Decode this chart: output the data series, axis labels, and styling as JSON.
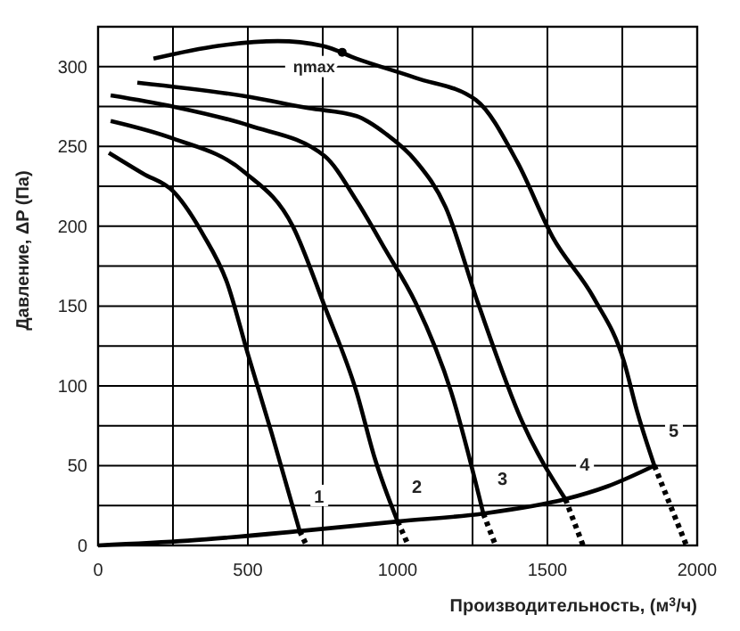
{
  "chart_data": {
    "type": "line",
    "xlabel": "Производительность, (м$^{3}$/ч)",
    "ylabel": "Давление, ΔP (Па)",
    "xlim": [
      0,
      2000
    ],
    "ylim": [
      0,
      325
    ],
    "xticks": [
      0,
      {
        "value": 250,
        "label": null
      },
      500,
      {
        "value": 750,
        "label": null
      },
      1000,
      {
        "value": 1250,
        "label": null
      },
      1500,
      {
        "value": 1750,
        "label": null
      },
      2000
    ],
    "yticks": [
      0,
      {
        "value": 25,
        "label": null
      },
      50,
      {
        "value": 75,
        "label": null
      },
      100,
      {
        "value": 125,
        "label": null
      },
      150,
      {
        "value": 175,
        "label": null
      },
      200,
      {
        "value": 225,
        "label": null
      },
      250,
      {
        "value": 275,
        "label": null
      },
      300
    ],
    "grid": true,
    "series": [
      {
        "color": "#000000",
        "x": [
          36,
          150,
          250,
          350,
          430,
          500,
          580,
          673
        ],
        "values": [
          246,
          233,
          222,
          195,
          165,
          120,
          70,
          9
        ]
      },
      {
        "color": "#000000",
        "x": [
          673,
          696
        ],
        "values": [
          9,
          0
        ],
        "line_style": "dotted"
      },
      {
        "color": "#000000",
        "x": [
          42,
          250,
          488,
          650,
          756,
          863,
          923,
          1000
        ],
        "values": [
          266,
          255,
          234,
          200,
          150,
          96,
          55,
          15
        ]
      },
      {
        "color": "#000000",
        "x": [
          1000,
          1036
        ],
        "values": [
          15,
          0
        ],
        "line_style": "dotted"
      },
      {
        "color": "#000000",
        "x": [
          42,
          250,
          506,
          756,
          863,
          960,
          1060,
          1179,
          1286
        ],
        "values": [
          282,
          275,
          263,
          244,
          216,
          185,
          152,
          96,
          20
        ]
      },
      {
        "color": "#000000",
        "x": [
          1286,
          1327
        ],
        "values": [
          20,
          0
        ],
        "line_style": "dotted"
      },
      {
        "color": "#000000",
        "x": [
          131,
          506,
          702,
          863,
          960,
          1060,
          1160,
          1268,
          1417,
          1560
        ],
        "values": [
          290,
          281,
          274,
          269,
          258,
          241,
          212,
          152,
          77,
          29
        ]
      },
      {
        "color": "#000000",
        "x": [
          1560,
          1619
        ],
        "values": [
          29,
          0
        ],
        "line_style": "dotted"
      },
      {
        "color": "#000000",
        "x": [
          185,
          400,
          600,
          750,
          863,
          1060,
          1262,
          1400,
          1518,
          1655,
          1756,
          1798,
          1857
        ],
        "values": [
          305,
          313,
          316,
          313,
          305,
          293,
          279,
          240,
          193,
          155,
          115,
          85,
          50
        ]
      },
      {
        "color": "#000000",
        "x": [
          1857,
          1964
        ],
        "values": [
          50,
          0
        ],
        "line_style": "dotted"
      },
      {
        "color": "#000000",
        "x": [
          0,
          300,
          673,
          1000,
          1286,
          1560,
          1700,
          1857
        ],
        "values": [
          0,
          3,
          9,
          15,
          20,
          29,
          37,
          50
        ]
      }
    ],
    "annotations": [
      {
        "text": "ηmax",
        "x": 815,
        "y": 309
      },
      {
        "text": "1",
        "x": 673,
        "y": 9
      },
      {
        "text": "2",
        "x": 1000,
        "y": 15
      },
      {
        "text": "3",
        "x": 1286,
        "y": 20
      },
      {
        "text": "4",
        "x": 1560,
        "y": 29
      },
      {
        "text": "5",
        "x": 1857,
        "y": 50
      }
    ]
  }
}
